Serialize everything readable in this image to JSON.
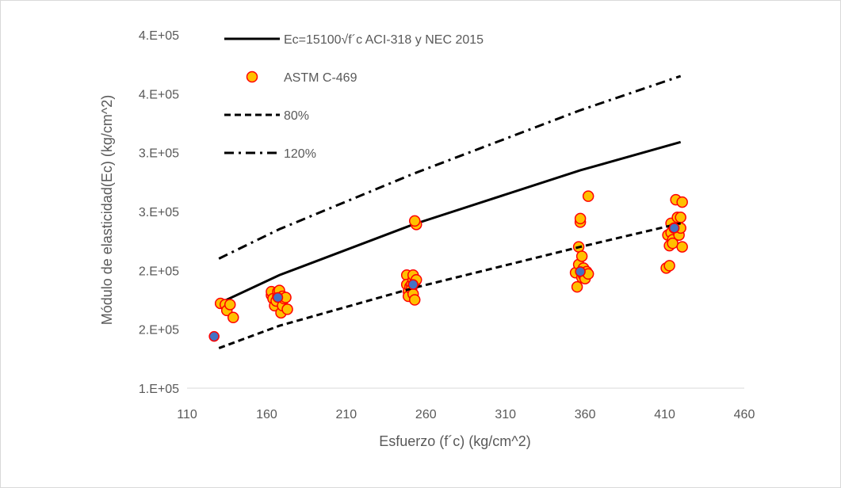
{
  "chart_data": {
    "type": "scatter",
    "xlabel": "Esfuerzo (f´c) (kg/cm^2)",
    "ylabel": "Módulo de elasticidad(Ec) (kg/cm^2)",
    "xlim": [
      110,
      460
    ],
    "ylim": [
      100000,
      400000
    ],
    "xticks": [
      110,
      160,
      210,
      260,
      310,
      360,
      410,
      460
    ],
    "yticks": [
      100000,
      150000,
      200000,
      250000,
      300000,
      350000,
      400000
    ],
    "ytick_labels": [
      "1.E+05",
      "2.E+05",
      "2.E+05",
      "3.E+05",
      "3.E+05",
      "4.E+05",
      "4.E+05"
    ],
    "grid": false,
    "legend_position": "top-left",
    "series": [
      {
        "name": "Ec=15100√f´c ACI-318 y NEC 2015",
        "kind": "line",
        "style": "solid",
        "color": "#000000",
        "x": [
          130,
          168,
          252,
          357,
          420
        ],
        "y": [
          172000,
          196000,
          239000,
          285000,
          309000
        ]
      },
      {
        "name": "ASTM C-469",
        "kind": "scatter",
        "color": "#FFC000",
        "edge_color": "#FF0000",
        "x": [
          131,
          134,
          135,
          137,
          139,
          163,
          163,
          164,
          165,
          166,
          167,
          167,
          168,
          168,
          169,
          170,
          170,
          171,
          172,
          173,
          248,
          248,
          249,
          249,
          250,
          251,
          251,
          252,
          252,
          252,
          253,
          253,
          254,
          254,
          253,
          354,
          355,
          356,
          356,
          357,
          357,
          358,
          358,
          359,
          359,
          360,
          361,
          362,
          362,
          411,
          412,
          413,
          413,
          414,
          414,
          415,
          415,
          416,
          417,
          418,
          419,
          420,
          420,
          421,
          421
        ],
        "y": [
          172000,
          171000,
          166000,
          171000,
          160000,
          179000,
          182000,
          176000,
          170000,
          174000,
          178000,
          182000,
          180000,
          183000,
          164000,
          170000,
          178000,
          176000,
          177000,
          167000,
          196000,
          188000,
          182000,
          178000,
          186000,
          188000,
          184000,
          192000,
          180000,
          196000,
          175000,
          189000,
          192000,
          239000,
          242000,
          198000,
          186000,
          205000,
          220000,
          241000,
          244000,
          194000,
          212000,
          196000,
          202000,
          193000,
          199000,
          197000,
          263000,
          202000,
          230000,
          204000,
          221000,
          240000,
          232000,
          226000,
          223000,
          236000,
          260000,
          245000,
          230000,
          236000,
          245000,
          220000,
          258000
        ]
      },
      {
        "name": "80%",
        "kind": "line",
        "style": "dashed",
        "color": "#000000",
        "x": [
          130,
          168,
          252,
          357,
          420
        ],
        "y": [
          134000,
          153000,
          185000,
          220000,
          240000
        ]
      },
      {
        "name": "120%",
        "kind": "line",
        "style": "dashdot",
        "color": "#000000",
        "x": [
          130,
          168,
          252,
          357,
          420
        ],
        "y": [
          210000,
          235000,
          282000,
          336000,
          365000
        ]
      },
      {
        "name": "",
        "kind": "mean-markers",
        "color": "#4472C4",
        "edge_color": "#FF0000",
        "x": [
          127,
          167,
          252,
          357,
          416
        ],
        "y": [
          144000,
          177000,
          188000,
          199000,
          236000
        ]
      }
    ]
  }
}
